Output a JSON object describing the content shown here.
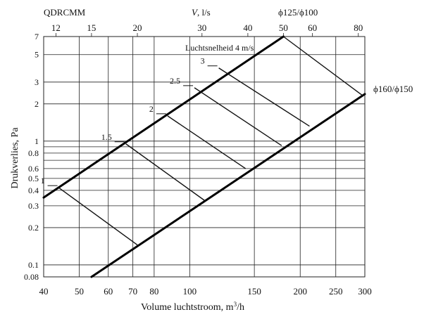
{
  "header": {
    "model": "QDRCMM",
    "top_axis_symbol": "V",
    "top_axis_unit": ", l/s",
    "upper_line_label": "ϕ125/ϕ100",
    "lower_line_label": "ϕ160/ϕ150"
  },
  "chart_data": {
    "type": "line",
    "xscale": "log",
    "yscale": "log",
    "xlim": [
      40,
      300
    ],
    "ylim": [
      0.08,
      7
    ],
    "xlabel": "Volume luchtstroom, m³/h",
    "ylabel": "Drukverlies, Pa",
    "x_ticks": [
      40,
      50,
      60,
      70,
      80,
      100,
      150,
      200,
      250,
      300
    ],
    "y_ticks": [
      0.08,
      0.1,
      0.2,
      0.3,
      0.4,
      0.5,
      0.6,
      0.8,
      1,
      2,
      3,
      5,
      7
    ],
    "y_grid_extra": [
      0.9,
      0.7
    ],
    "top_axis": {
      "unit": "l/s",
      "ticks": [
        12,
        15,
        20,
        30,
        40,
        50,
        60,
        80
      ]
    },
    "series": [
      {
        "name": "ϕ125/ϕ100",
        "x": [
          40,
          180
        ],
        "y": [
          0.35,
          7.0
        ]
      },
      {
        "name": "ϕ160/ϕ150",
        "x": [
          54,
          300
        ],
        "y": [
          0.08,
          2.4
        ]
      }
    ],
    "velocity_title": "Luchtsnelheid 4 m/s",
    "velocity_lines": [
      {
        "label": "1",
        "x": [
          44,
          72
        ],
        "y": [
          0.42,
          0.145
        ]
      },
      {
        "label": "1.5",
        "x": [
          67,
          110
        ],
        "y": [
          0.95,
          0.33
        ]
      },
      {
        "label": "2",
        "x": [
          87,
          142
        ],
        "y": [
          1.6,
          0.6
        ]
      },
      {
        "label": "2.5",
        "x": [
          103,
          178
        ],
        "y": [
          2.7,
          0.92
        ]
      },
      {
        "label": "3",
        "x": [
          120,
          212
        ],
        "y": [
          3.9,
          1.32
        ]
      },
      {
        "label": "",
        "x": [
          180,
          295
        ],
        "y": [
          7.0,
          2.35
        ]
      }
    ],
    "grid": true
  }
}
